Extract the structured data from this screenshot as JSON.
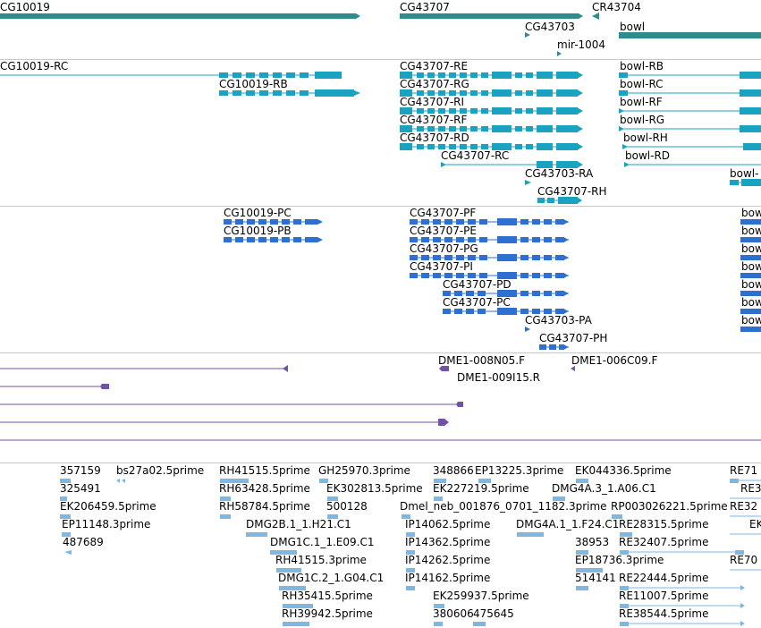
{
  "tracks": {
    "genes": {
      "name": "genes",
      "color": "#2f8c8c",
      "labels": [
        "CG10019",
        "CG43707",
        "CG43703",
        "CR43704",
        "mir-1004",
        "bowl"
      ]
    },
    "transcripts": {
      "name": "transcripts",
      "color": "#1aa3c0",
      "labels": [
        "CG10019-RC",
        "CG10019-RB",
        "CG43707-RE",
        "CG43707-RG",
        "CG43707-RI",
        "CG43707-RF",
        "CG43707-RD",
        "CG43707-RC",
        "CG43703-RA",
        "CG43707-RH",
        "bowl-RB",
        "bowl-RC",
        "bowl-RF",
        "bowl-RG",
        "bowl-RH",
        "bowl-RD"
      ]
    },
    "proteins": {
      "name": "proteins",
      "color": "#2e6fd2",
      "labels": [
        "CG10019-PC",
        "CG10019-PB",
        "CG43707-PF",
        "CG43707-PE",
        "CG43707-PG",
        "CG43707-PI",
        "CG43707-PD",
        "CG43707-PC",
        "CG43703-PA",
        "CG43707-PH"
      ]
    },
    "clones": {
      "name": "clones",
      "color": "#7052a8",
      "labels": [
        "DME1-008N05.F",
        "DME1-006C09.F",
        "DME1-009I15.R"
      ]
    },
    "ests": {
      "name": "ests",
      "color": "#7fb7e0",
      "labels": [
        "357159",
        "bs27a02.5prime",
        "325491",
        "EK206459.5prime",
        "EP11148.3prime",
        "487689",
        "RH41515.5prime",
        "RH63428.5prime",
        "RH58784.5prime",
        "DMG2B.1_1.H21.C1",
        "DMG1C.1_1.E09.C1",
        "RH41515.3prime",
        "DMG1C.2_1.G04.C1",
        "RH35415.5prime",
        "RH39942.5prime",
        "GH25970.3prime",
        "EK302813.5prime",
        "500128",
        "348866",
        "EP13225.3prime",
        "EK227219.5prime",
        "Dmel_neb_001876_0701_1182.3prime",
        "IP14062.5prime",
        "IP14362.5prime",
        "IP14262.5prime",
        "IP14162.5prime",
        "EK259937.5prime",
        "380606",
        "475645",
        "EK044336.5prime",
        "DMG4A.3_1.A06.C1",
        "RP003026221.5prime",
        "DMG4A.1_1.F24.C1",
        "RE28315.5prime",
        "38953",
        "RE32407.5prime",
        "EP18736.3prime",
        "514141",
        "RE22444.5prime",
        "RE11007.5prime",
        "RE38544.5prime"
      ]
    }
  }
}
